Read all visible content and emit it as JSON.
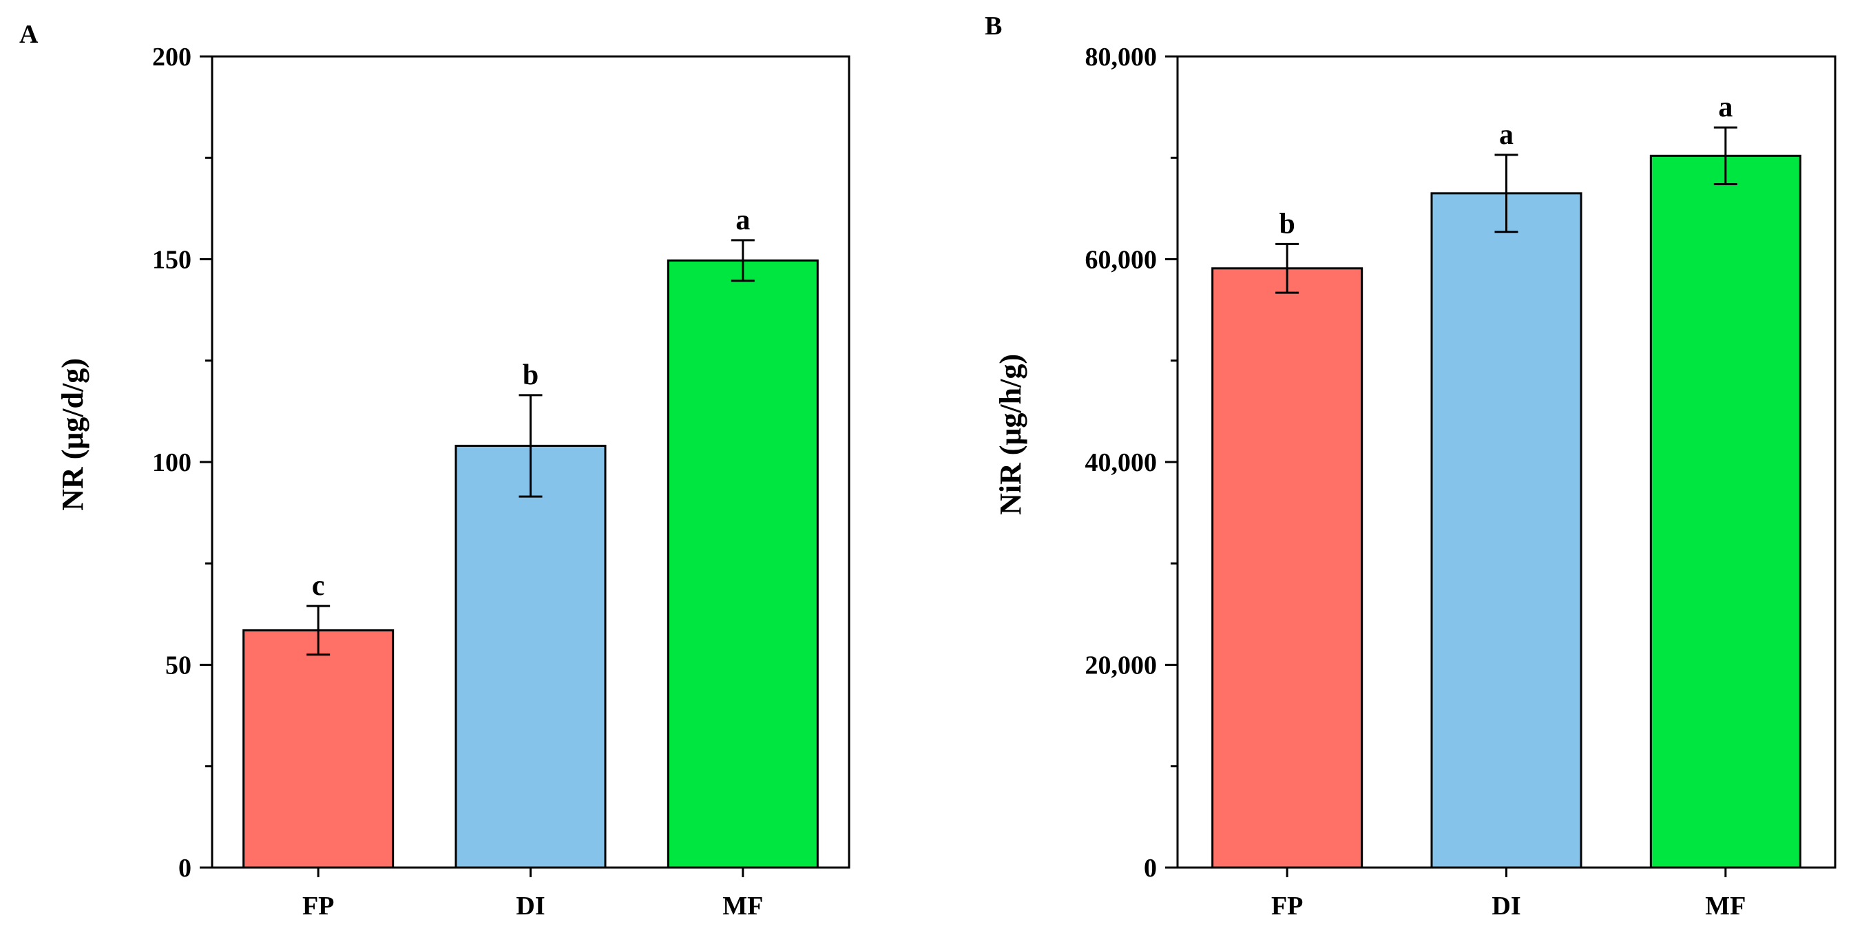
{
  "chart_data": [
    {
      "type": "bar",
      "panel": "A",
      "title": "",
      "xlabel": "",
      "ylabel": "NR (μg/d/g)",
      "ylim": [
        0,
        200
      ],
      "yticks": [
        0,
        50,
        100,
        150,
        200
      ],
      "ytick_labels": [
        "0",
        "50",
        "100",
        "150",
        "200"
      ],
      "categories": [
        "FP",
        "DI",
        "MF"
      ],
      "values": [
        58.5,
        104,
        149.7
      ],
      "errors": [
        6,
        12.5,
        5
      ],
      "significance": [
        "c",
        "b",
        "a"
      ],
      "colors": [
        "#ff7066",
        "#85c3ea",
        "#00e640"
      ],
      "grid": false
    },
    {
      "type": "bar",
      "panel": "B",
      "title": "",
      "xlabel": "",
      "ylabel": "NiR (μg/h/g)",
      "ylim": [
        0,
        80000
      ],
      "yticks": [
        0,
        20000,
        40000,
        60000,
        80000
      ],
      "ytick_labels": [
        "0",
        "20,000",
        "40,000",
        "60,000",
        "80,000"
      ],
      "categories": [
        "FP",
        "DI",
        "MF"
      ],
      "values": [
        59100,
        66500,
        70200
      ],
      "errors": [
        2400,
        3800,
        2800
      ],
      "significance": [
        "b",
        "a",
        "a"
      ],
      "colors": [
        "#ff7066",
        "#85c3ea",
        "#00e640"
      ],
      "grid": false
    }
  ]
}
